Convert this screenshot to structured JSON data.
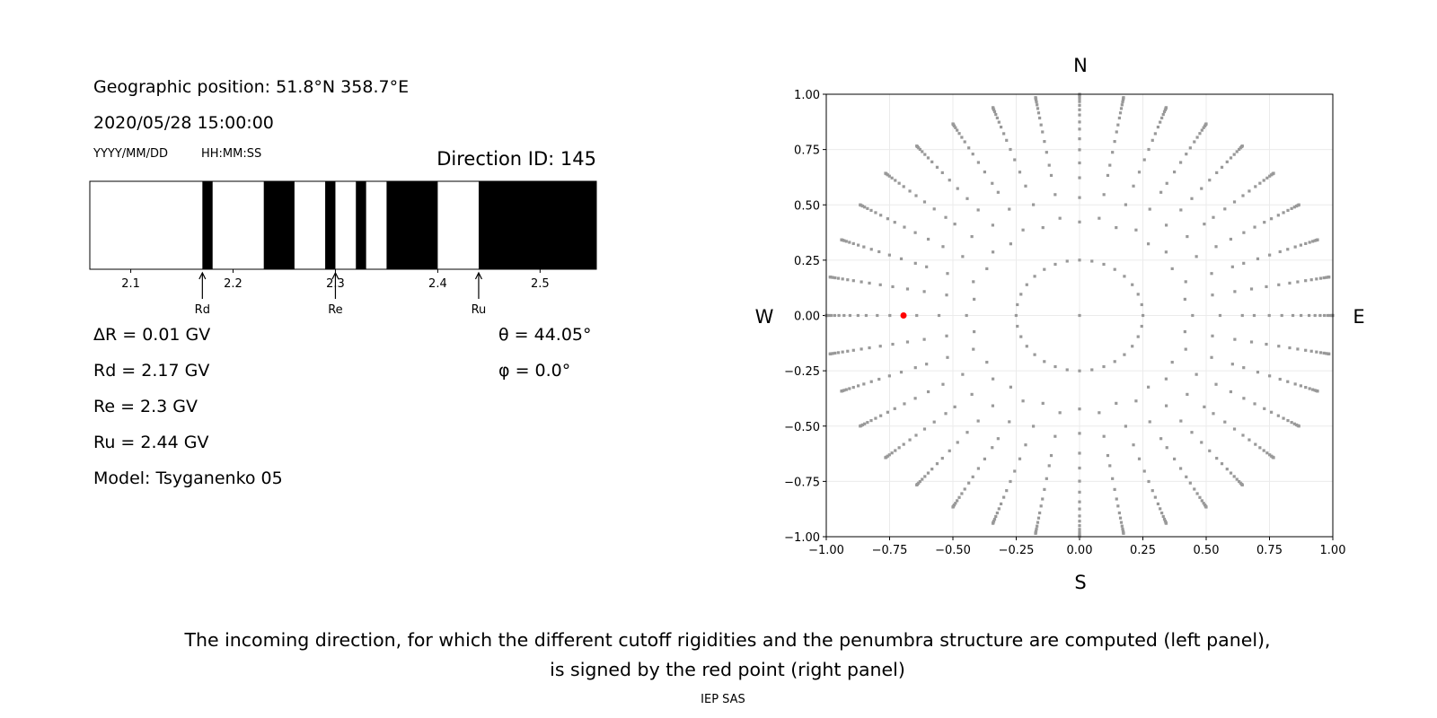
{
  "left_panel": {
    "geo_position": "Geographic position: 51.8°N 358.7°E",
    "datetime": "2020/05/28 15:00:00",
    "date_format": "YYYY/MM/DD",
    "time_format": "HH:MM:SS",
    "direction_id": "Direction ID: 145",
    "delta_r": "ΔR = 0.01 GV",
    "rd": "Rd = 2.17 GV",
    "re": "Re = 2.3 GV",
    "ru": "Ru = 2.44 GV",
    "model": "Model: Tsyganenko 05",
    "theta": "θ = 44.05°",
    "phi": "φ = 0.0°"
  },
  "caption": {
    "line1": "The incoming direction, for which the different cutoff rigidities and the penumbra structure are computed (left panel),",
    "line2": "is signed by the red point (right panel)",
    "credit": "IEP SAS"
  },
  "chart_data": [
    {
      "type": "bar",
      "name": "penumbra",
      "xlim": [
        2.06,
        2.555
      ],
      "xticks": [
        2.1,
        2.2,
        2.3,
        2.4,
        2.5
      ],
      "xtick_labels": [
        "2.1",
        "2.2",
        "2.3",
        "2.4",
        "2.5"
      ],
      "forbidden_intervals_GV": [
        [
          2.17,
          2.18
        ],
        [
          2.23,
          2.26
        ],
        [
          2.29,
          2.3
        ],
        [
          2.32,
          2.33
        ],
        [
          2.35,
          2.4
        ],
        [
          2.44,
          2.555
        ]
      ],
      "allowed_color": "#ffffff",
      "forbidden_color": "#000000",
      "markers": [
        {
          "label": "Rd",
          "value": 2.17
        },
        {
          "label": "Re",
          "value": 2.3
        },
        {
          "label": "Ru",
          "value": 2.44
        }
      ]
    },
    {
      "type": "scatter",
      "name": "directions",
      "xlim": [
        -1,
        1
      ],
      "ylim": [
        -1,
        1
      ],
      "grid": true,
      "ticks": [
        -1,
        -0.75,
        -0.5,
        -0.25,
        0,
        0.25,
        0.5,
        0.75,
        1
      ],
      "tick_labels": [
        "−1.00",
        "−0.75",
        "−0.50",
        "−0.25",
        "0.00",
        "0.25",
        "0.50",
        "0.75",
        "1.00"
      ],
      "compass": {
        "top": "N",
        "bottom": "S",
        "left": "W",
        "right": "E"
      },
      "grid_points": {
        "inner_ring_zenith_deg": 14.5,
        "inner_ring_count": 32,
        "spoke_azimuth_step_deg": 10,
        "spoke_zenith_deg": [
          25,
          32.2,
          38.5,
          43.6,
          48.5,
          53,
          57.4,
          61,
          65,
          68.4,
          71.8,
          75.2,
          78.5,
          81.5,
          84.5,
          87.5,
          90
        ],
        "center_point": true,
        "color": "#999999"
      },
      "selected_point": {
        "x": -0.695,
        "y": 0.0,
        "color": "#ff0000"
      }
    }
  ]
}
